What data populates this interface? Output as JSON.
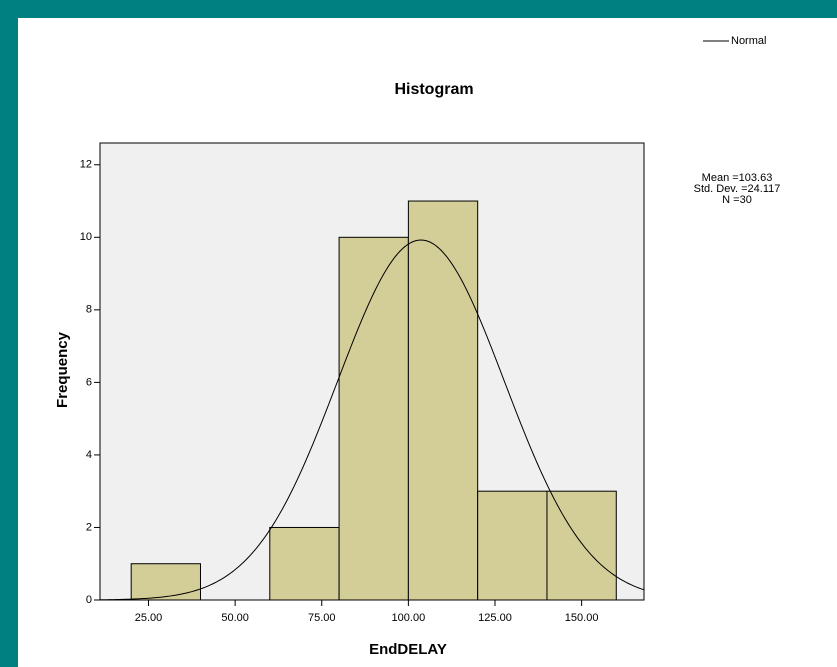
{
  "chart_data": {
    "type": "histogram",
    "title": "Histogram",
    "x_label": "EndDELAY",
    "y_label": "Frequency",
    "bins": [
      20,
      40,
      60,
      80,
      100,
      120,
      140,
      160
    ],
    "counts": [
      1,
      0,
      2,
      10,
      11,
      3,
      3
    ],
    "color": "#d3ce97",
    "xlim": [
      11,
      168
    ],
    "xticks": [
      {
        "value": 25,
        "label": "25.00"
      },
      {
        "value": 50,
        "label": "50.00"
      },
      {
        "value": 75,
        "label": "75.00"
      },
      {
        "value": 100,
        "label": "100.00"
      },
      {
        "value": 125,
        "label": "125.00"
      },
      {
        "value": 150,
        "label": "150.00"
      }
    ],
    "ylim": [
      0,
      12.6
    ],
    "yticks": [
      0,
      2,
      4,
      6,
      8,
      10,
      12
    ],
    "legend": {
      "name": "Normal",
      "corner": "top-right"
    },
    "normal": {
      "mean": 103.63,
      "sd": 24.117,
      "n": 30,
      "labels": [
        "Mean =103.63",
        "Std. Dev. =24.117",
        "N =30"
      ]
    }
  }
}
